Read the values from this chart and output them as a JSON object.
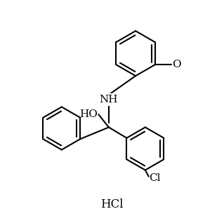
{
  "background_color": "#ffffff",
  "line_color": "#000000",
  "line_width": 1.5,
  "font_size": 10,
  "labels": {
    "hcl": "HCl",
    "nh": "NH",
    "ho": "HO",
    "cl": "Cl",
    "o": "O"
  },
  "figsize": [
    3.19,
    3.08
  ],
  "dpi": 100
}
